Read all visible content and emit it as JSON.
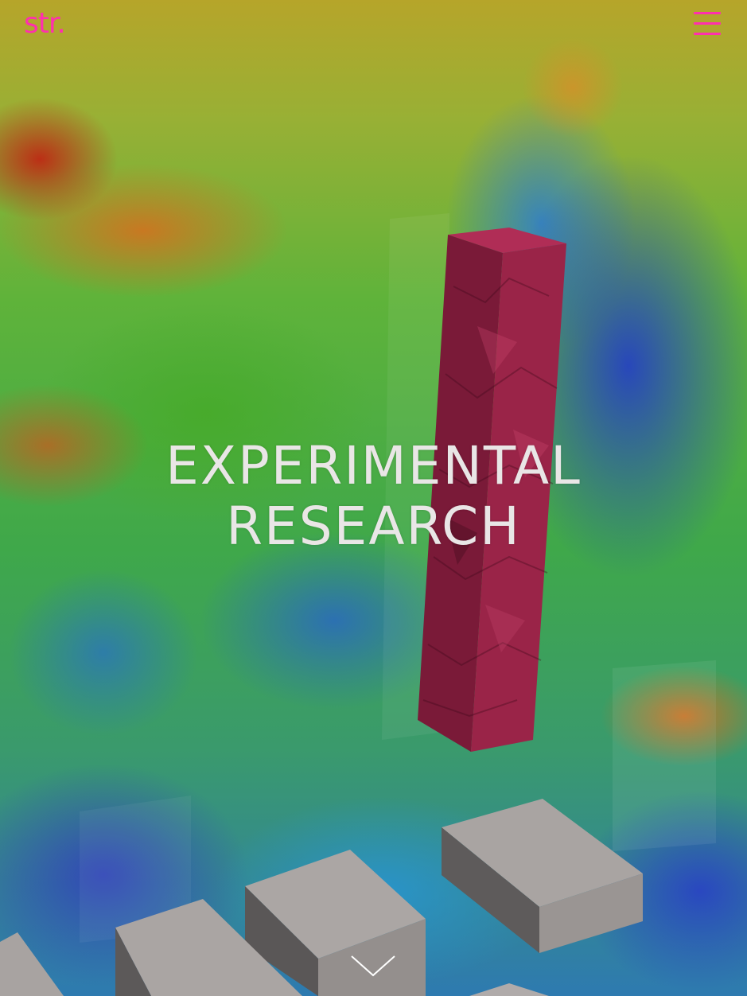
{
  "header": {
    "logo_text": "str.",
    "menu_icon": "hamburger-menu-icon"
  },
  "hero": {
    "title_line_1": "EXPERIMENTAL",
    "title_line_2": "RESEARCH",
    "scroll_icon": "chevron-down-icon"
  },
  "colors": {
    "accent": "#ff2fae",
    "title_text": "#e9e6e6",
    "tower": "#8e1f44"
  }
}
